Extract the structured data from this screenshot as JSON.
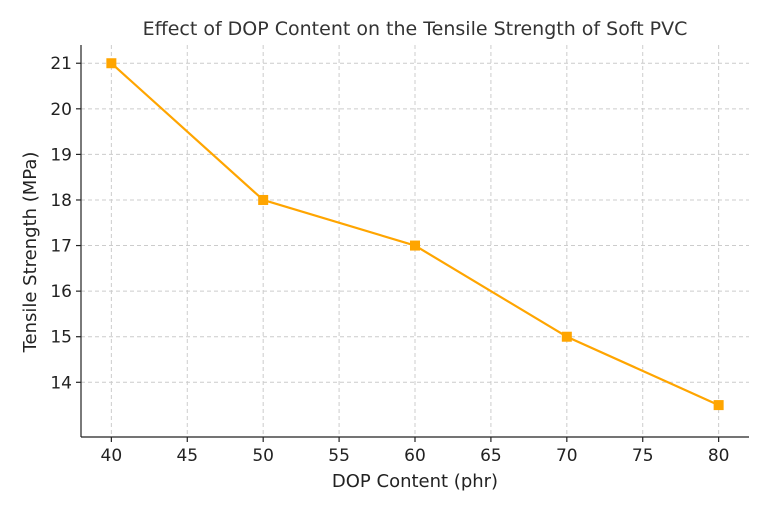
{
  "chart_data": {
    "type": "line",
    "title": "Effect of DOP Content on the Tensile Strength of Soft PVC",
    "xlabel": "DOP Content (phr)",
    "ylabel": "Tensile Strength (MPa)",
    "x": [
      40,
      50,
      60,
      70,
      80
    ],
    "series": [
      {
        "values": [
          21,
          18,
          17,
          15,
          13.5
        ],
        "color": "#FFA500",
        "marker": "square"
      }
    ],
    "xlim": [
      38,
      82
    ],
    "ylim": [
      12.8,
      21.4
    ],
    "xticks": [
      40,
      45,
      50,
      55,
      60,
      65,
      70,
      75,
      80
    ],
    "yticks": [
      14,
      15,
      16,
      17,
      18,
      19,
      20,
      21
    ],
    "grid": true,
    "legend": "none"
  }
}
